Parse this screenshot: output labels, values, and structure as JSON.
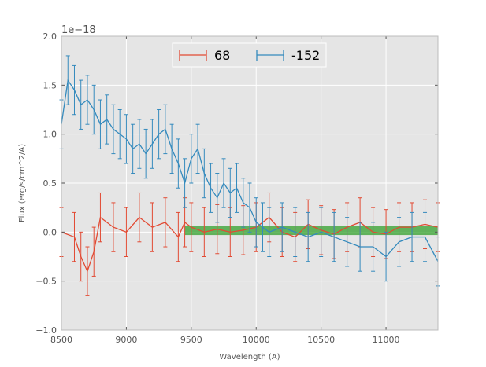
{
  "chart_data": {
    "type": "line",
    "title": "",
    "xlabel": "Wavelength (A)",
    "ylabel": "Flux (erg/s/cm^2/A)",
    "y_scale_label": "1e−18",
    "xlim": [
      8500,
      11400
    ],
    "ylim": [
      -1.0,
      2.0
    ],
    "x_ticks": [
      8500,
      9000,
      9500,
      10000,
      10500,
      11000
    ],
    "x_tick_labels": [
      "8500",
      "9000",
      "9500",
      "10000",
      "10500",
      "11000"
    ],
    "y_ticks": [
      -1.0,
      -0.5,
      0.0,
      0.5,
      1.0,
      1.5,
      2.0
    ],
    "y_tick_labels": [
      "−1.0",
      "−0.5",
      "0.0",
      "0.5",
      "1.0",
      "1.5",
      "2.0"
    ],
    "grid": true,
    "legend_position": "top-center",
    "band": {
      "name": "",
      "x_start": 9450,
      "x_end": 11400,
      "y_low": -0.03,
      "y_high": 0.06,
      "color": "#33a02c"
    },
    "series": [
      {
        "name": "68",
        "color": "#e24a33",
        "error": 0.25,
        "x": [
          8500,
          8600,
          8650,
          8700,
          8750,
          8800,
          8900,
          9000,
          9100,
          9200,
          9300,
          9400,
          9450,
          9500,
          9600,
          9700,
          9800,
          9900,
          10000,
          10100,
          10200,
          10300,
          10400,
          10500,
          10600,
          10700,
          10800,
          10900,
          11000,
          11100,
          11200,
          11300,
          11400
        ],
        "y": [
          0.0,
          -0.05,
          -0.25,
          -0.4,
          -0.2,
          0.15,
          0.05,
          0.0,
          0.15,
          0.05,
          0.1,
          -0.05,
          0.1,
          0.05,
          0.0,
          0.03,
          0.0,
          0.02,
          0.05,
          0.15,
          0.0,
          -0.05,
          0.08,
          0.02,
          -0.02,
          0.05,
          0.1,
          0.0,
          -0.02,
          0.05,
          0.05,
          0.08,
          0.05
        ]
      },
      {
        "name": "-152",
        "color": "#348abd",
        "error": 0.25,
        "x": [
          8500,
          8550,
          8600,
          8650,
          8700,
          8750,
          8800,
          8850,
          8900,
          8950,
          9000,
          9050,
          9100,
          9150,
          9200,
          9250,
          9300,
          9350,
          9400,
          9450,
          9500,
          9550,
          9600,
          9650,
          9700,
          9750,
          9800,
          9850,
          9900,
          9950,
          10000,
          10050,
          10100,
          10200,
          10300,
          10400,
          10500,
          10600,
          10700,
          10800,
          10900,
          11000,
          11100,
          11200,
          11300,
          11400
        ],
        "y": [
          1.1,
          1.55,
          1.45,
          1.3,
          1.35,
          1.25,
          1.1,
          1.15,
          1.05,
          1.0,
          0.95,
          0.85,
          0.9,
          0.8,
          0.9,
          1.0,
          1.05,
          0.85,
          0.7,
          0.5,
          0.75,
          0.85,
          0.6,
          0.45,
          0.35,
          0.5,
          0.4,
          0.45,
          0.3,
          0.25,
          0.1,
          0.05,
          0.0,
          0.05,
          0.0,
          -0.05,
          0.0,
          -0.05,
          -0.1,
          -0.15,
          -0.15,
          -0.25,
          -0.1,
          -0.05,
          -0.05,
          -0.3
        ]
      }
    ]
  }
}
